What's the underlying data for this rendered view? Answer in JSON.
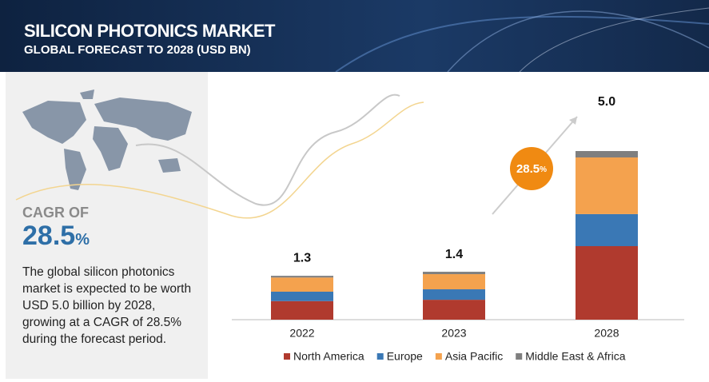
{
  "header": {
    "title": "SILICON PHOTONICS MARKET",
    "subtitle": "GLOBAL FORECAST TO 2028 (USD BN)"
  },
  "summary": {
    "cagr_label": "CAGR OF",
    "cagr_value": "28.5",
    "cagr_unit": "%",
    "description": "The global silicon photonics market is expected to be worth USD 5.0 billion by 2028, growing at a CAGR of 28.5% during the forecast period."
  },
  "chart_data": {
    "type": "stacked_bar",
    "categories": [
      "2022",
      "2023",
      "2028"
    ],
    "series": [
      {
        "name": "North America",
        "color": "#b03a2e",
        "values": [
          0.55,
          0.59,
          2.18
        ]
      },
      {
        "name": "Europe",
        "color": "#3a78b5",
        "values": [
          0.28,
          0.31,
          0.95
        ]
      },
      {
        "name": "Asia Pacific",
        "color": "#f4a24e",
        "values": [
          0.42,
          0.45,
          1.68
        ]
      },
      {
        "name": "Middle East & Africa",
        "color": "#7f7f7f",
        "values": [
          0.05,
          0.07,
          0.19
        ]
      }
    ],
    "totals": {
      "values": [
        1.3,
        1.4,
        5
      ],
      "value_labels": [
        "1.3",
        "1.4",
        "5.0"
      ]
    },
    "legend": "bottom"
  }
}
